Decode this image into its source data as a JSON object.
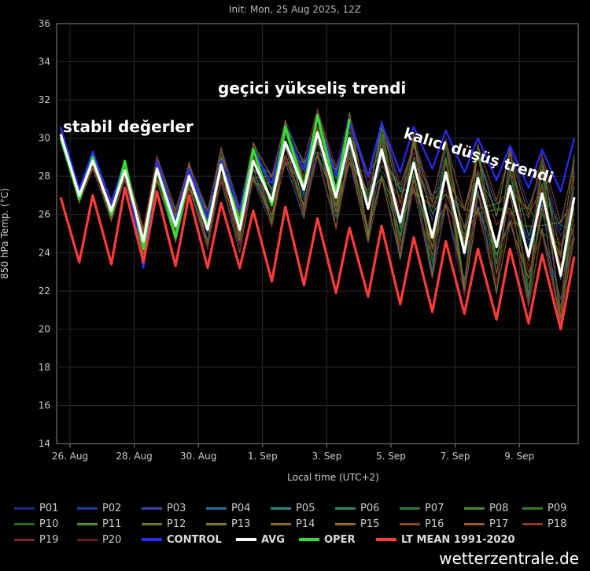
{
  "title": "Init: Mon, 25 Aug 2025, 12Z",
  "annotations": {
    "stable": "stabil değerler",
    "temporary_rise": "geçici yükseliş trendi",
    "lasting_fall": "kalıcı düşüş trendi"
  },
  "credit": "wetterzentrale.de",
  "chart_data": {
    "type": "line",
    "title": "Init: Mon, 25 Aug 2025, 12Z",
    "xlabel": "Local time (UTC+2)",
    "ylabel": "850 hPa Temp. (°C)",
    "ylim": [
      14,
      36
    ],
    "y_ticks": [
      14,
      16,
      18,
      20,
      22,
      24,
      26,
      28,
      30,
      32,
      34,
      36
    ],
    "x_start": "2025-08-25 14:00",
    "x_end": "2025-09-10 20:00",
    "x_ticks": [
      "26. Aug",
      "28. Aug",
      "30. Aug",
      "1. Sep",
      "3. Sep",
      "5. Sep",
      "7. Sep",
      "9. Sep"
    ],
    "grid": true,
    "legend_position": "bottom",
    "series": [
      {
        "name": "AVG",
        "color": "#ffffff",
        "peaks": [
          30.2,
          28.8,
          28.3,
          28.4,
          28.0,
          28.6,
          28.8,
          29.8,
          30.3,
          30.0,
          29.4,
          28.7,
          28.2,
          27.9,
          27.5,
          27.1,
          26.9
        ],
        "troughs": [
          27.0,
          26.2,
          24.6,
          25.4,
          25.2,
          25.2,
          26.7,
          27.3,
          26.9,
          26.3,
          25.6,
          24.8,
          24.0,
          24.3,
          23.8,
          22.8
        ]
      },
      {
        "name": "LT MEAN 1991-2020",
        "color": "#ff3b3b",
        "peaks": [
          26.9,
          27.0,
          27.4,
          27.2,
          27.0,
          26.6,
          26.2,
          26.4,
          25.8,
          25.3,
          25.4,
          24.8,
          24.6,
          24.2,
          24.2,
          23.9,
          23.8
        ],
        "troughs": [
          23.5,
          23.4,
          23.5,
          23.3,
          23.2,
          23.2,
          22.5,
          22.3,
          21.9,
          21.7,
          21.3,
          20.9,
          20.8,
          20.5,
          20.3,
          20.0
        ]
      },
      {
        "name": "OPER",
        "color": "#33dd33",
        "peaks": [
          30.0,
          29.0,
          28.8,
          28.4,
          28.0,
          28.6,
          29.4,
          30.6,
          31.2,
          31.0
        ],
        "troughs": [
          26.8,
          26.0,
          24.2,
          24.8,
          25.4,
          25.6,
          26.5,
          27.4,
          27.2
        ]
      },
      {
        "name": "CONTROL",
        "color": "#2a2aff",
        "peaks": [
          30.6,
          29.3,
          28.8,
          28.8,
          28.4,
          28.8,
          29.4,
          30.4,
          31.0,
          30.8,
          30.8,
          30.6,
          30.4,
          30.0,
          29.6,
          29.4,
          30.0
        ],
        "troughs": [
          27.3,
          26.6,
          23.2,
          25.6,
          25.8,
          26.2,
          27.6,
          28.3,
          28.0,
          28.0,
          28.2,
          28.4,
          28.2,
          27.8,
          27.4,
          27.2
        ]
      }
    ],
    "legend": [
      {
        "name": "P01",
        "color": "#1a2a8a"
      },
      {
        "name": "P02",
        "color": "#2a3aa8"
      },
      {
        "name": "P03",
        "color": "#3a4aa6"
      },
      {
        "name": "P04",
        "color": "#2a6fa0"
      },
      {
        "name": "P05",
        "color": "#2a8a8a"
      },
      {
        "name": "P06",
        "color": "#2a8a6a"
      },
      {
        "name": "P07",
        "color": "#2a7a3a"
      },
      {
        "name": "P08",
        "color": "#4a8a2a"
      },
      {
        "name": "P09",
        "color": "#3a7a2a"
      },
      {
        "name": "P10",
        "color": "#2a6a1a"
      },
      {
        "name": "P11",
        "color": "#5a8a2a"
      },
      {
        "name": "P12",
        "color": "#6a7a2a"
      },
      {
        "name": "P13",
        "color": "#7a7a2a"
      },
      {
        "name": "P14",
        "color": "#8a6a2a"
      },
      {
        "name": "P15",
        "color": "#9a6a2a"
      },
      {
        "name": "P16",
        "color": "#8a4a2a"
      },
      {
        "name": "P17",
        "color": "#9a5a1a"
      },
      {
        "name": "P18",
        "color": "#8a3a2a"
      },
      {
        "name": "P19",
        "color": "#7a2a2a"
      },
      {
        "name": "P20",
        "color": "#6a1a1a"
      },
      {
        "name": "CONTROL",
        "color": "#2a2aff",
        "bold": true
      },
      {
        "name": "AVG",
        "color": "#ffffff",
        "bold": true
      },
      {
        "name": "OPER",
        "color": "#33dd33",
        "bold": true
      },
      {
        "name": "LT MEAN 1991-2020",
        "color": "#ff3b3b",
        "bold": true
      }
    ]
  }
}
